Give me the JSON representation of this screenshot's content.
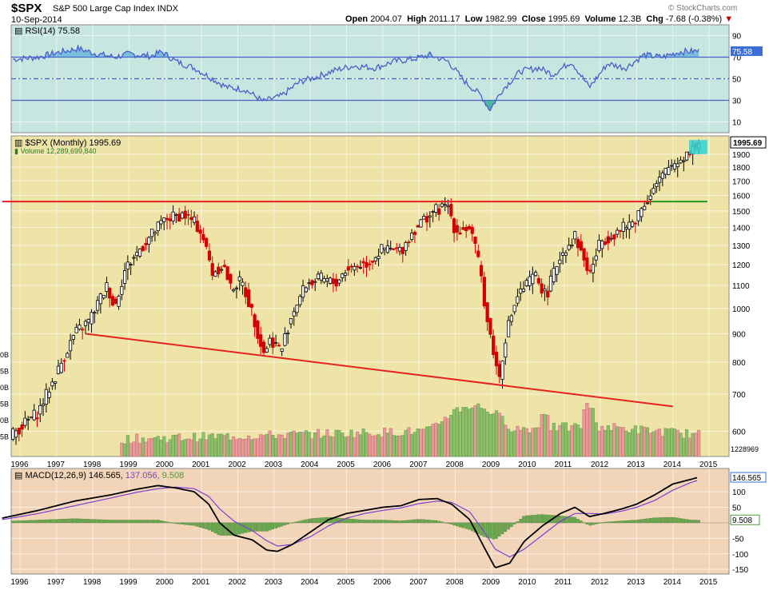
{
  "header": {
    "symbol": "$SPX",
    "name": "S&P 500 Large Cap Index",
    "exchange": "INDX",
    "date": "10-Sep-2014",
    "open_label": "Open",
    "open": "2004.07",
    "high_label": "High",
    "high": "2011.17",
    "low_label": "Low",
    "low": "1982.99",
    "close_label": "Close",
    "close": "1995.69",
    "volume_label": "Volume",
    "volume": "12.3B",
    "chg_label": "Chg",
    "chg": "-7.68 (-0.38%)",
    "chg_arrow": "▼",
    "logo": "© StockCharts.com"
  },
  "colors": {
    "rsi_bg": "#c7e6df",
    "price_bg": "#efe4a8",
    "macd_bg": "#f2d5b8",
    "up": "#000000",
    "down": "#d40000",
    "resistance": "#e8211d",
    "support": "#1f9a1f",
    "rsi_line": "#4a5ecc",
    "macd_line": "#000000",
    "signal_line": "#7b3fd1",
    "hist": "#6aa84f"
  },
  "chart_data": [
    {
      "type": "line",
      "title": "RSI(14)",
      "last_value": "75.58",
      "ylim": [
        0,
        100
      ],
      "y_ticks": [
        "90",
        "70",
        "50",
        "30",
        "10"
      ],
      "reference_levels": [
        70,
        50,
        30
      ],
      "x_years": [
        1996,
        1997,
        1998,
        1999,
        2000,
        2001,
        2002,
        2003,
        2004,
        2005,
        2006,
        2007,
        2008,
        2009,
        2010,
        2011,
        2012,
        2013,
        2014,
        2015
      ],
      "points": [
        [
          1995.8,
          68
        ],
        [
          1996.5,
          70
        ],
        [
          1997.0,
          74
        ],
        [
          1997.6,
          78
        ],
        [
          1998.0,
          74
        ],
        [
          1998.6,
          70
        ],
        [
          1999.0,
          73
        ],
        [
          1999.6,
          71
        ],
        [
          1999.9,
          75
        ],
        [
          2000.3,
          66
        ],
        [
          2000.8,
          60
        ],
        [
          2001.2,
          52
        ],
        [
          2001.7,
          42
        ],
        [
          2002.2,
          40
        ],
        [
          2002.7,
          29
        ],
        [
          2003.2,
          34
        ],
        [
          2003.7,
          47
        ],
        [
          2004.2,
          52
        ],
        [
          2004.7,
          58
        ],
        [
          2005.2,
          62
        ],
        [
          2005.8,
          60
        ],
        [
          2006.3,
          66
        ],
        [
          2006.8,
          68
        ],
        [
          2007.3,
          72
        ],
        [
          2007.8,
          66
        ],
        [
          2008.3,
          46
        ],
        [
          2008.7,
          35
        ],
        [
          2008.95,
          21
        ],
        [
          2009.3,
          40
        ],
        [
          2009.8,
          57
        ],
        [
          2010.3,
          60
        ],
        [
          2010.7,
          54
        ],
        [
          2011.2,
          66
        ],
        [
          2011.7,
          42
        ],
        [
          2012.2,
          64
        ],
        [
          2012.7,
          60
        ],
        [
          2013.2,
          72
        ],
        [
          2013.7,
          70
        ],
        [
          2014.2,
          75
        ],
        [
          2014.7,
          75.58
        ]
      ]
    },
    {
      "type": "candlestick",
      "title": "$SPX (Monthly)",
      "last_value": "1995.69",
      "volume_label": "Volume 12,289,699,840",
      "volume_axis_last": "1228969",
      "volume_axis_partial_labels": [
        "0B",
        "5B",
        "0B",
        "5B",
        "0B",
        "5B"
      ],
      "scale": "log",
      "ylim": [
        540,
        2050
      ],
      "y_ticks": [
        "1900",
        "1800",
        "1700",
        "1600",
        "1500",
        "1400",
        "1300",
        "1200",
        "1100",
        "1000",
        "900",
        "800",
        "700",
        "600"
      ],
      "x_years": [
        1996,
        1997,
        1998,
        1999,
        2000,
        2001,
        2002,
        2003,
        2004,
        2005,
        2006,
        2007,
        2008,
        2009,
        2010,
        2011,
        2012,
        2013,
        2014,
        2015
      ],
      "close_path": [
        [
          1995.5,
          570
        ],
        [
          1996.5,
          650
        ],
        [
          1997.0,
          760
        ],
        [
          1997.5,
          900
        ],
        [
          1997.9,
          950
        ],
        [
          1998.4,
          1100
        ],
        [
          1998.6,
          1000
        ],
        [
          1998.9,
          1180
        ],
        [
          1999.5,
          1330
        ],
        [
          2000.0,
          1450
        ],
        [
          2000.5,
          1480
        ],
        [
          2000.8,
          1430
        ],
        [
          2001.0,
          1370
        ],
        [
          2001.3,
          1160
        ],
        [
          2001.6,
          1200
        ],
        [
          2001.8,
          1090
        ],
        [
          2002.1,
          1120
        ],
        [
          2002.4,
          980
        ],
        [
          2002.7,
          830
        ],
        [
          2002.9,
          880
        ],
        [
          2003.2,
          840
        ],
        [
          2003.5,
          980
        ],
        [
          2003.9,
          1110
        ],
        [
          2004.3,
          1130
        ],
        [
          2004.7,
          1110
        ],
        [
          2005.0,
          1180
        ],
        [
          2005.6,
          1210
        ],
        [
          2006.0,
          1280
        ],
        [
          2006.5,
          1270
        ],
        [
          2006.9,
          1400
        ],
        [
          2007.4,
          1500
        ],
        [
          2007.8,
          1530
        ],
        [
          2008.0,
          1380
        ],
        [
          2008.4,
          1400
        ],
        [
          2008.7,
          1160
        ],
        [
          2008.85,
          970
        ],
        [
          2009.0,
          870
        ],
        [
          2009.2,
          740
        ],
        [
          2009.4,
          900
        ],
        [
          2009.7,
          1050
        ],
        [
          2010.2,
          1150
        ],
        [
          2010.5,
          1050
        ],
        [
          2010.9,
          1250
        ],
        [
          2011.3,
          1350
        ],
        [
          2011.7,
          1150
        ],
        [
          2012.0,
          1320
        ],
        [
          2012.5,
          1380
        ],
        [
          2012.9,
          1430
        ],
        [
          2013.4,
          1620
        ],
        [
          2013.9,
          1800
        ],
        [
          2014.3,
          1880
        ],
        [
          2014.7,
          1995.69
        ]
      ],
      "lines": [
        {
          "type": "horizontal",
          "level": 1560,
          "x_start": 1995.5,
          "x_end": 2013.4,
          "color": "resistance"
        },
        {
          "type": "horizontal",
          "level": 1560,
          "x_start": 2013.4,
          "x_end": 2014.95,
          "color": "support"
        },
        {
          "type": "trend",
          "from": [
            1997.8,
            900
          ],
          "to": [
            2014.0,
            665
          ],
          "color": "resistance"
        }
      ],
      "volume_shown_from": 1998.8
    },
    {
      "type": "line",
      "title": "MACD(12,26,9)",
      "macd_value": "146.565",
      "signal_value": "137.056",
      "hist_value": "9.508",
      "ylim": [
        -165,
        175
      ],
      "y_ticks": [
        "100",
        "50",
        "-50",
        "-100",
        "-150"
      ],
      "x_years": [
        1996,
        1997,
        1998,
        1999,
        2000,
        2001,
        2002,
        2003,
        2004,
        2005,
        2006,
        2007,
        2008,
        2009,
        2010,
        2011,
        2012,
        2013,
        2014,
        2015
      ],
      "series": [
        {
          "name": "MACD",
          "points": [
            [
              1995.5,
              15
            ],
            [
              1996.5,
              40
            ],
            [
              1997.5,
              70
            ],
            [
              1998.5,
              90
            ],
            [
              1999.2,
              108
            ],
            [
              1999.8,
              120
            ],
            [
              2000.3,
              112
            ],
            [
              2000.8,
              100
            ],
            [
              2001.2,
              60
            ],
            [
              2001.5,
              0
            ],
            [
              2001.9,
              -40
            ],
            [
              2002.4,
              -55
            ],
            [
              2002.8,
              -88
            ],
            [
              2003.1,
              -92
            ],
            [
              2003.5,
              -70
            ],
            [
              2004.0,
              -30
            ],
            [
              2004.5,
              10
            ],
            [
              2005.0,
              30
            ],
            [
              2005.5,
              40
            ],
            [
              2006.0,
              50
            ],
            [
              2006.5,
              55
            ],
            [
              2007.0,
              75
            ],
            [
              2007.5,
              78
            ],
            [
              2007.9,
              60
            ],
            [
              2008.4,
              10
            ],
            [
              2008.8,
              -80
            ],
            [
              2009.1,
              -145
            ],
            [
              2009.5,
              -130
            ],
            [
              2009.9,
              -60
            ],
            [
              2010.4,
              -10
            ],
            [
              2010.9,
              30
            ],
            [
              2011.3,
              50
            ],
            [
              2011.7,
              20
            ],
            [
              2012.1,
              30
            ],
            [
              2012.6,
              45
            ],
            [
              2013.0,
              60
            ],
            [
              2013.5,
              90
            ],
            [
              2014.0,
              125
            ],
            [
              2014.5,
              140
            ],
            [
              2014.7,
              146.565
            ]
          ]
        },
        {
          "name": "Signal",
          "points": [
            [
              1995.5,
              10
            ],
            [
              1996.5,
              30
            ],
            [
              1997.5,
              55
            ],
            [
              1998.5,
              80
            ],
            [
              1999.2,
              98
            ],
            [
              1999.8,
              110
            ],
            [
              2000.3,
              115
            ],
            [
              2000.8,
              110
            ],
            [
              2001.2,
              85
            ],
            [
              2001.5,
              45
            ],
            [
              2001.9,
              5
            ],
            [
              2002.4,
              -25
            ],
            [
              2002.8,
              -58
            ],
            [
              2003.1,
              -75
            ],
            [
              2003.5,
              -70
            ],
            [
              2004.0,
              -45
            ],
            [
              2004.5,
              -10
            ],
            [
              2005.0,
              15
            ],
            [
              2005.5,
              30
            ],
            [
              2006.0,
              40
            ],
            [
              2006.5,
              48
            ],
            [
              2007.0,
              62
            ],
            [
              2007.5,
              70
            ],
            [
              2007.9,
              66
            ],
            [
              2008.4,
              35
            ],
            [
              2008.8,
              -30
            ],
            [
              2009.1,
              -85
            ],
            [
              2009.5,
              -110
            ],
            [
              2009.9,
              -85
            ],
            [
              2010.4,
              -40
            ],
            [
              2010.9,
              5
            ],
            [
              2011.3,
              30
            ],
            [
              2011.7,
              30
            ],
            [
              2012.1,
              28
            ],
            [
              2012.6,
              38
            ],
            [
              2013.0,
              50
            ],
            [
              2013.5,
              72
            ],
            [
              2014.0,
              105
            ],
            [
              2014.5,
              130
            ],
            [
              2014.7,
              137.056
            ]
          ]
        }
      ]
    }
  ]
}
